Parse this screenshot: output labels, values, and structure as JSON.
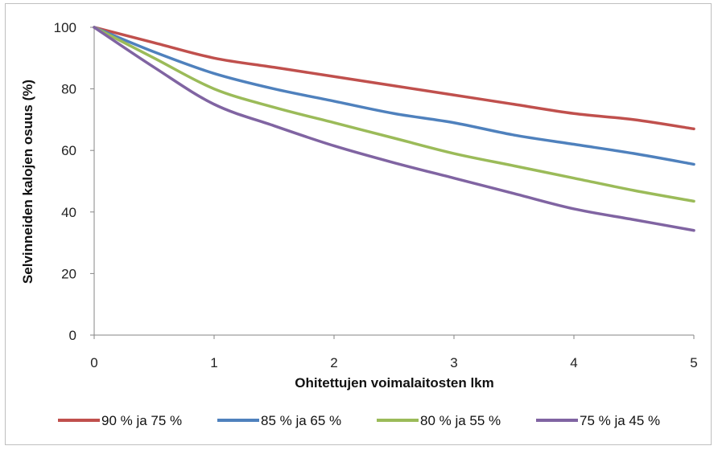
{
  "chart_data": {
    "type": "line",
    "title": "",
    "xlabel": "Ohitettujen voimalaitosten lkm",
    "ylabel": "Selvinneiden kalojen osuus (%)",
    "xlim": [
      0,
      5
    ],
    "ylim": [
      0,
      100
    ],
    "x_ticks": [
      "0",
      "1",
      "2",
      "3",
      "4",
      "5"
    ],
    "y_ticks": [
      "0",
      "20",
      "40",
      "60",
      "80",
      "100"
    ],
    "grid": false,
    "legend_position": "bottom",
    "x": [
      0,
      0.5,
      1,
      1.5,
      2,
      2.5,
      3,
      3.5,
      4,
      4.5,
      5
    ],
    "series": [
      {
        "name": "90 % ja 75 %",
        "color": "#C0504D",
        "values": [
          100,
          95,
          90,
          87,
          84,
          81,
          78,
          75,
          72,
          70,
          67
        ]
      },
      {
        "name": "85 % ja 65 %",
        "color": "#4F81BD",
        "values": [
          100,
          92,
          85,
          80,
          76,
          72,
          69,
          65,
          62,
          59,
          55.5
        ]
      },
      {
        "name": "80 % ja 55 %",
        "color": "#9BBB59",
        "values": [
          100,
          90,
          80,
          74,
          69,
          64,
          59,
          55,
          51,
          47,
          43.5
        ]
      },
      {
        "name": "75 % ja 45 %",
        "color": "#8064A2",
        "values": [
          100,
          87,
          75,
          68,
          61.5,
          56,
          51,
          46,
          41,
          37.5,
          34
        ]
      }
    ]
  }
}
